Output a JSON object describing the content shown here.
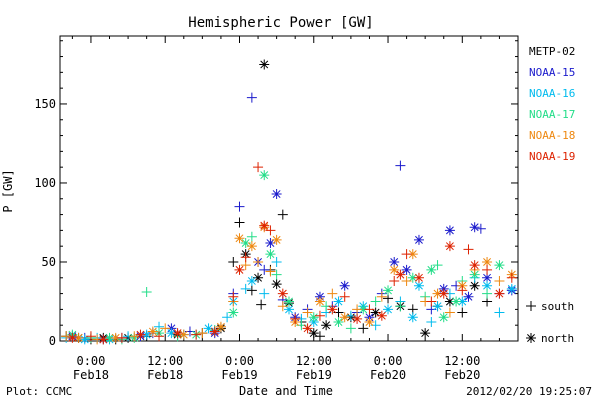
{
  "chart_data": {
    "type": "scatter",
    "title": "Hemispheric Power [GW]",
    "ylabel": "P [GW]",
    "xlabel": "Date and Time",
    "x_unit": "hours since 2012-02-18 00:00",
    "xlim": [
      -5,
      69
    ],
    "ylim": [
      0,
      193
    ],
    "yticks": [
      0,
      50,
      100,
      150
    ],
    "ytick_labels": [
      "0",
      "50",
      "100",
      "150"
    ],
    "xticks": [
      {
        "x": 0,
        "time": "0:00",
        "date": "Feb18"
      },
      {
        "x": 12,
        "time": "12:00",
        "date": "Feb18"
      },
      {
        "x": 24,
        "time": "0:00",
        "date": "Feb19"
      },
      {
        "x": 36,
        "time": "12:00",
        "date": "Feb19"
      },
      {
        "x": 48,
        "time": "0:00",
        "date": "Feb20"
      },
      {
        "x": 60,
        "time": "12:00",
        "date": "Feb20"
      }
    ],
    "marker_legend": [
      {
        "symbol": "+",
        "label": "south"
      },
      {
        "symbol": "*",
        "label": "north"
      }
    ],
    "series": [
      {
        "name": "METP-02",
        "color": "#000000",
        "points": [
          [
            -4,
            3,
            "+"
          ],
          [
            -2,
            2,
            "*"
          ],
          [
            0,
            1,
            "+"
          ],
          [
            2,
            2,
            "*"
          ],
          [
            4,
            1,
            "+"
          ],
          [
            6,
            2,
            "*"
          ],
          [
            9,
            3,
            "+"
          ],
          [
            14,
            4,
            "*"
          ],
          [
            18,
            5,
            "+"
          ],
          [
            21,
            8,
            "*"
          ],
          [
            23,
            50,
            "+"
          ],
          [
            24,
            75,
            "+"
          ],
          [
            25,
            55,
            "*"
          ],
          [
            26,
            32,
            "+"
          ],
          [
            27,
            40,
            "*"
          ],
          [
            27.5,
            23,
            "+"
          ],
          [
            28,
            175,
            "*"
          ],
          [
            29,
            45,
            "+"
          ],
          [
            30,
            36,
            "*"
          ],
          [
            31,
            80,
            "+"
          ],
          [
            32,
            24,
            "*"
          ],
          [
            34,
            12,
            "+"
          ],
          [
            36,
            5,
            "*"
          ],
          [
            37,
            3,
            "+"
          ],
          [
            38,
            10,
            "*"
          ],
          [
            40,
            18,
            "+"
          ],
          [
            42,
            15,
            "*"
          ],
          [
            44,
            8,
            "+"
          ],
          [
            46,
            18,
            "*"
          ],
          [
            48,
            27,
            "+"
          ],
          [
            50,
            22,
            "*"
          ],
          [
            52,
            20,
            "+"
          ],
          [
            54,
            5,
            "*"
          ],
          [
            56,
            22,
            "+"
          ],
          [
            58,
            25,
            "*"
          ],
          [
            60,
            18,
            "+"
          ],
          [
            62,
            35,
            "*"
          ],
          [
            64,
            25,
            "+"
          ]
        ]
      },
      {
        "name": "NOAA-15",
        "color": "#1a1acc",
        "points": [
          [
            -3,
            3,
            "*"
          ],
          [
            -1,
            2,
            "+"
          ],
          [
            2,
            1,
            "*"
          ],
          [
            5,
            2,
            "+"
          ],
          [
            8,
            3,
            "*"
          ],
          [
            10,
            5,
            "+"
          ],
          [
            13,
            8,
            "*"
          ],
          [
            16,
            6,
            "+"
          ],
          [
            20,
            5,
            "*"
          ],
          [
            23,
            30,
            "+"
          ],
          [
            24,
            85,
            "+"
          ],
          [
            26,
            154,
            "+"
          ],
          [
            27,
            50,
            "*"
          ],
          [
            28,
            45,
            "+"
          ],
          [
            29,
            62,
            "*"
          ],
          [
            30,
            93,
            "*"
          ],
          [
            31,
            26,
            "+"
          ],
          [
            33,
            15,
            "*"
          ],
          [
            35,
            20,
            "+"
          ],
          [
            37,
            28,
            "*"
          ],
          [
            39,
            22,
            "+"
          ],
          [
            41,
            35,
            "*"
          ],
          [
            43,
            18,
            "+"
          ],
          [
            45,
            15,
            "*"
          ],
          [
            47,
            30,
            "+"
          ],
          [
            49,
            50,
            "*"
          ],
          [
            50,
            111,
            "+"
          ],
          [
            51,
            45,
            "*"
          ],
          [
            53,
            64,
            "*"
          ],
          [
            55,
            20,
            "+"
          ],
          [
            57,
            33,
            "*"
          ],
          [
            58,
            70,
            "*"
          ],
          [
            59,
            35,
            "+"
          ],
          [
            61,
            28,
            "*"
          ],
          [
            62,
            72,
            "*"
          ],
          [
            63,
            71,
            "+"
          ],
          [
            64,
            40,
            "*"
          ],
          [
            66,
            30,
            "+"
          ],
          [
            68,
            32,
            "*"
          ]
        ]
      },
      {
        "name": "NOAA-16",
        "color": "#00bbee",
        "points": [
          [
            -4,
            2,
            "+"
          ],
          [
            -1,
            1,
            "*"
          ],
          [
            1,
            2,
            "+"
          ],
          [
            3,
            1,
            "*"
          ],
          [
            6,
            3,
            "+"
          ],
          [
            9,
            4,
            "*"
          ],
          [
            11,
            9,
            "+"
          ],
          [
            13,
            5,
            "*"
          ],
          [
            15,
            4,
            "+"
          ],
          [
            19,
            8,
            "*"
          ],
          [
            22,
            15,
            "+"
          ],
          [
            23,
            25,
            "*"
          ],
          [
            25,
            33,
            "+"
          ],
          [
            26,
            38,
            "*"
          ],
          [
            28,
            30,
            "+"
          ],
          [
            30,
            50,
            "+"
          ],
          [
            32,
            20,
            "*"
          ],
          [
            34,
            14,
            "+"
          ],
          [
            36,
            12,
            "*"
          ],
          [
            38,
            18,
            "+"
          ],
          [
            40,
            25,
            "*"
          ],
          [
            42,
            16,
            "+"
          ],
          [
            44,
            22,
            "*"
          ],
          [
            46,
            10,
            "+"
          ],
          [
            48,
            20,
            "*"
          ],
          [
            50,
            25,
            "+"
          ],
          [
            52,
            15,
            "*"
          ],
          [
            53,
            35,
            "*"
          ],
          [
            55,
            12,
            "+"
          ],
          [
            56,
            22,
            "*"
          ],
          [
            58,
            30,
            "+"
          ],
          [
            60,
            25,
            "*"
          ],
          [
            62,
            40,
            "+"
          ],
          [
            64,
            35,
            "*"
          ],
          [
            66,
            18,
            "+"
          ],
          [
            68,
            33,
            "*"
          ]
        ]
      },
      {
        "name": "NOAA-17",
        "color": "#22dd88",
        "points": [
          [
            -3,
            4,
            "*"
          ],
          [
            0,
            2,
            "+"
          ],
          [
            3,
            2,
            "*"
          ],
          [
            5,
            1,
            "+"
          ],
          [
            7,
            2,
            "*"
          ],
          [
            9,
            31,
            "+"
          ],
          [
            11,
            5,
            "*"
          ],
          [
            14,
            3,
            "+"
          ],
          [
            17,
            4,
            "*"
          ],
          [
            20,
            7,
            "+"
          ],
          [
            23,
            18,
            "*"
          ],
          [
            25,
            62,
            "*"
          ],
          [
            26,
            66,
            "+"
          ],
          [
            28,
            105,
            "*"
          ],
          [
            29,
            55,
            "*"
          ],
          [
            30,
            42,
            "+"
          ],
          [
            32,
            25,
            "*"
          ],
          [
            34,
            10,
            "+"
          ],
          [
            36,
            15,
            "*"
          ],
          [
            38,
            22,
            "+"
          ],
          [
            40,
            12,
            "*"
          ],
          [
            42,
            8,
            "+"
          ],
          [
            44,
            20,
            "*"
          ],
          [
            46,
            25,
            "+"
          ],
          [
            48,
            32,
            "*"
          ],
          [
            50,
            22,
            "+"
          ],
          [
            52,
            40,
            "*"
          ],
          [
            54,
            28,
            "+"
          ],
          [
            55,
            45,
            "*"
          ],
          [
            56,
            48,
            "+"
          ],
          [
            57,
            15,
            "*"
          ],
          [
            59,
            25,
            "*"
          ],
          [
            60,
            38,
            "+"
          ],
          [
            62,
            42,
            "*"
          ],
          [
            64,
            30,
            "+"
          ],
          [
            66,
            48,
            "*"
          ]
        ]
      },
      {
        "name": "NOAA-18",
        "color": "#ee8811",
        "points": [
          [
            -4,
            3,
            "+"
          ],
          [
            -2,
            2,
            "*"
          ],
          [
            1,
            1,
            "+"
          ],
          [
            4,
            2,
            "*"
          ],
          [
            7,
            3,
            "+"
          ],
          [
            10,
            6,
            "*"
          ],
          [
            12,
            8,
            "+"
          ],
          [
            15,
            4,
            "*"
          ],
          [
            18,
            5,
            "+"
          ],
          [
            21,
            9,
            "*"
          ],
          [
            23,
            25,
            "+"
          ],
          [
            24,
            65,
            "*"
          ],
          [
            25,
            48,
            "+"
          ],
          [
            26,
            60,
            "*"
          ],
          [
            27,
            50,
            "+"
          ],
          [
            28,
            72,
            "*"
          ],
          [
            29,
            44,
            "+"
          ],
          [
            30,
            64,
            "*"
          ],
          [
            31,
            22,
            "+"
          ],
          [
            33,
            12,
            "*"
          ],
          [
            35,
            18,
            "+"
          ],
          [
            37,
            25,
            "*"
          ],
          [
            39,
            30,
            "+"
          ],
          [
            41,
            15,
            "*"
          ],
          [
            43,
            20,
            "+"
          ],
          [
            45,
            12,
            "*"
          ],
          [
            47,
            28,
            "+"
          ],
          [
            49,
            45,
            "*"
          ],
          [
            51,
            38,
            "+"
          ],
          [
            52,
            55,
            "*"
          ],
          [
            54,
            25,
            "+"
          ],
          [
            56,
            30,
            "*"
          ],
          [
            58,
            18,
            "+"
          ],
          [
            60,
            35,
            "*"
          ],
          [
            62,
            45,
            "+"
          ],
          [
            64,
            50,
            "*"
          ],
          [
            66,
            38,
            "+"
          ],
          [
            68,
            42,
            "*"
          ]
        ]
      },
      {
        "name": "NOAA-19",
        "color": "#dd2200",
        "points": [
          [
            -3,
            2,
            "*"
          ],
          [
            0,
            3,
            "+"
          ],
          [
            2,
            1,
            "*"
          ],
          [
            5,
            2,
            "+"
          ],
          [
            8,
            4,
            "*"
          ],
          [
            11,
            3,
            "+"
          ],
          [
            14,
            5,
            "*"
          ],
          [
            17,
            4,
            "+"
          ],
          [
            20,
            6,
            "*"
          ],
          [
            23,
            28,
            "+"
          ],
          [
            24,
            45,
            "*"
          ],
          [
            25,
            53,
            "+"
          ],
          [
            27,
            110,
            "+"
          ],
          [
            28,
            73,
            "*"
          ],
          [
            29,
            70,
            "+"
          ],
          [
            31,
            30,
            "*"
          ],
          [
            33,
            14,
            "+"
          ],
          [
            35,
            8,
            "*"
          ],
          [
            37,
            16,
            "+"
          ],
          [
            39,
            20,
            "*"
          ],
          [
            41,
            28,
            "+"
          ],
          [
            43,
            14,
            "*"
          ],
          [
            45,
            20,
            "+"
          ],
          [
            47,
            16,
            "*"
          ],
          [
            49,
            38,
            "+"
          ],
          [
            50,
            42,
            "*"
          ],
          [
            51,
            55,
            "+"
          ],
          [
            53,
            40,
            "*"
          ],
          [
            55,
            25,
            "+"
          ],
          [
            57,
            30,
            "*"
          ],
          [
            58,
            60,
            "*"
          ],
          [
            60,
            32,
            "+"
          ],
          [
            61,
            58,
            "+"
          ],
          [
            62,
            48,
            "*"
          ],
          [
            64,
            45,
            "+"
          ],
          [
            66,
            30,
            "*"
          ],
          [
            68,
            40,
            "+"
          ]
        ]
      }
    ]
  },
  "footer": {
    "left": "Plot: CCMC",
    "timestamp": "2012/02/20 19:25:07"
  }
}
